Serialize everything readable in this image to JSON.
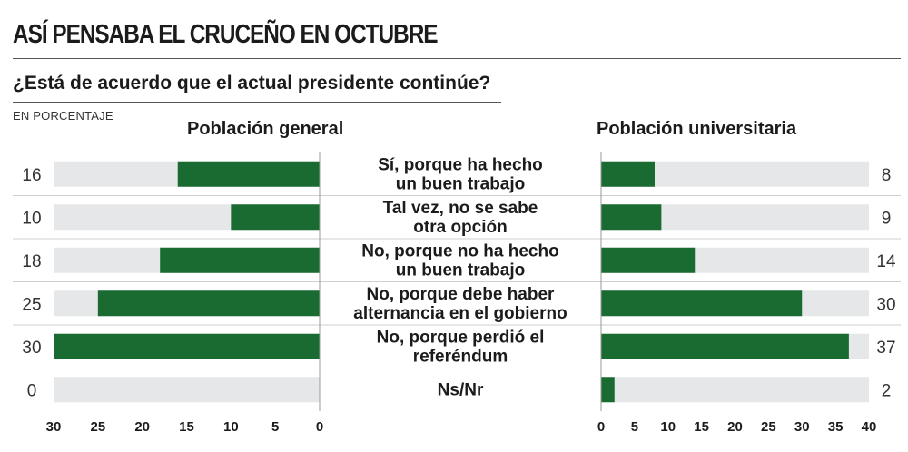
{
  "header": {
    "title": "ASÍ PENSABA EL CRUCEÑO EN OCTUBRE",
    "question": "¿Está de acuerdo que el actual presidente continúe?",
    "unit": "EN PORCENTAJE"
  },
  "colors": {
    "bar": "#1a6b32",
    "track": "#e6e7e8",
    "divider": "#cfcfcf",
    "text": "#1b1b1b"
  },
  "chart_data": [
    {
      "type": "bar",
      "title": "Población general",
      "orientation": "horizontal",
      "direction": "right-to-left",
      "categories": [
        "Sí, porque ha hecho un buen trabajo",
        "Tal vez, no se sabe otra opción",
        "No, porque no ha hecho un buen trabajo",
        "No, porque debe haber alternancia en el gobierno",
        "No, porque perdió el referéndum",
        "Ns/Nr"
      ],
      "values": [
        16,
        10,
        18,
        25,
        30,
        0
      ],
      "xlim": [
        0,
        30
      ],
      "ticks": [
        "30",
        "25",
        "20",
        "15",
        "10",
        "5",
        "0"
      ]
    },
    {
      "type": "bar",
      "title": "Población universitaria",
      "orientation": "horizontal",
      "direction": "left-to-right",
      "categories": [
        "Sí, porque ha hecho un buen trabajo",
        "Tal vez, no se sabe otra opción",
        "No, porque no ha hecho un buen trabajo",
        "No, porque debe haber alternancia en el gobierno",
        "No, porque perdió el referéndum",
        "Ns/Nr"
      ],
      "values": [
        8,
        9,
        14,
        30,
        37,
        2
      ],
      "xlim": [
        0,
        40
      ],
      "ticks": [
        "0",
        "5",
        "10",
        "15",
        "20",
        "25",
        "30",
        "35",
        "40"
      ]
    }
  ],
  "category_labels": [
    [
      "Sí, porque ha hecho",
      "un buen trabajo"
    ],
    [
      "Tal vez, no se sabe",
      "otra opción"
    ],
    [
      "No, porque no ha hecho",
      "un buen trabajo"
    ],
    [
      "No, porque debe haber",
      "alternancia en el gobierno"
    ],
    [
      "No, porque perdió el",
      "referéndum"
    ],
    [
      "Ns/Nr"
    ]
  ]
}
